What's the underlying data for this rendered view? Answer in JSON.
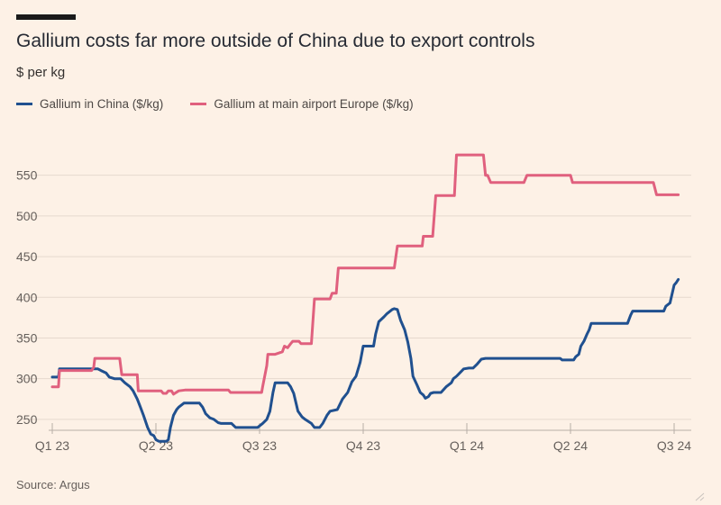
{
  "header": {
    "title": "Gallium costs far more outside of China due to export controls",
    "subtitle": "$ per kg"
  },
  "legend": [
    {
      "label": "Gallium in China ($/kg)",
      "color": "#20508f"
    },
    {
      "label": "Gallium at main airport Europe ($/kg)",
      "color": "#e0607e"
    }
  ],
  "footer": {
    "source": "Source: Argus"
  },
  "chart_data": {
    "type": "line",
    "ylabel": "$ per kg",
    "ylim": [
      220,
      580
    ],
    "yticks": [
      250,
      300,
      350,
      400,
      450,
      500,
      550
    ],
    "xlim": [
      0,
      6.19
    ],
    "xticks": [
      {
        "label": "Q1 23",
        "x": 0
      },
      {
        "label": "Q2 23",
        "x": 1
      },
      {
        "label": "Q3 23",
        "x": 2
      },
      {
        "label": "Q4 23",
        "x": 3
      },
      {
        "label": "Q1 24",
        "x": 4
      },
      {
        "label": "Q2 24",
        "x": 5
      },
      {
        "label": "Q3 24",
        "x": 6
      }
    ],
    "grid": true,
    "series": [
      {
        "name": "Gallium in China ($/kg)",
        "color": "#20508f",
        "points": [
          [
            0.0,
            302
          ],
          [
            0.06,
            302
          ],
          [
            0.07,
            312
          ],
          [
            0.3,
            312
          ],
          [
            0.44,
            312
          ],
          [
            0.47,
            310
          ],
          [
            0.52,
            307
          ],
          [
            0.55,
            302
          ],
          [
            0.6,
            300
          ],
          [
            0.66,
            300
          ],
          [
            0.7,
            295
          ],
          [
            0.75,
            290
          ],
          [
            0.78,
            285
          ],
          [
            0.82,
            275
          ],
          [
            0.85,
            265
          ],
          [
            0.88,
            255
          ],
          [
            0.92,
            240
          ],
          [
            0.95,
            232
          ],
          [
            0.98,
            230
          ],
          [
            1.0,
            225
          ],
          [
            1.03,
            223
          ],
          [
            1.1,
            223
          ],
          [
            1.12,
            225
          ],
          [
            1.14,
            240
          ],
          [
            1.17,
            255
          ],
          [
            1.2,
            262
          ],
          [
            1.22,
            265
          ],
          [
            1.27,
            270
          ],
          [
            1.42,
            270
          ],
          [
            1.45,
            265
          ],
          [
            1.48,
            257
          ],
          [
            1.52,
            252
          ],
          [
            1.56,
            250
          ],
          [
            1.6,
            246
          ],
          [
            1.63,
            245
          ],
          [
            1.67,
            245
          ],
          [
            1.7,
            245
          ],
          [
            1.73,
            245
          ],
          [
            1.77,
            240
          ],
          [
            1.8,
            240
          ],
          [
            1.95,
            240
          ],
          [
            1.98,
            240
          ],
          [
            2.03,
            245
          ],
          [
            2.07,
            250
          ],
          [
            2.1,
            260
          ],
          [
            2.13,
            283
          ],
          [
            2.15,
            295
          ],
          [
            2.27,
            295
          ],
          [
            2.3,
            290
          ],
          [
            2.33,
            282
          ],
          [
            2.37,
            260
          ],
          [
            2.41,
            253
          ],
          [
            2.44,
            250
          ],
          [
            2.5,
            245
          ],
          [
            2.53,
            240
          ],
          [
            2.58,
            240
          ],
          [
            2.61,
            245
          ],
          [
            2.65,
            255
          ],
          [
            2.68,
            260
          ],
          [
            2.75,
            262
          ],
          [
            2.8,
            275
          ],
          [
            2.85,
            283
          ],
          [
            2.89,
            296
          ],
          [
            2.93,
            303
          ],
          [
            2.97,
            320
          ],
          [
            3.0,
            340
          ],
          [
            3.1,
            340
          ],
          [
            3.12,
            355
          ],
          [
            3.15,
            370
          ],
          [
            3.2,
            376
          ],
          [
            3.23,
            380
          ],
          [
            3.28,
            385
          ],
          [
            3.3,
            386
          ],
          [
            3.33,
            385
          ],
          [
            3.36,
            372
          ],
          [
            3.4,
            360
          ],
          [
            3.43,
            345
          ],
          [
            3.46,
            325
          ],
          [
            3.48,
            303
          ],
          [
            3.52,
            292
          ],
          [
            3.55,
            283
          ],
          [
            3.58,
            280
          ],
          [
            3.6,
            276
          ],
          [
            3.63,
            278
          ],
          [
            3.65,
            282
          ],
          [
            3.68,
            283
          ],
          [
            3.75,
            283
          ],
          [
            3.8,
            290
          ],
          [
            3.85,
            295
          ],
          [
            3.87,
            300
          ],
          [
            3.9,
            303
          ],
          [
            3.93,
            307
          ],
          [
            3.97,
            312
          ],
          [
            4.02,
            313
          ],
          [
            4.06,
            313
          ],
          [
            4.1,
            318
          ],
          [
            4.14,
            324
          ],
          [
            4.18,
            325
          ],
          [
            4.9,
            325
          ],
          [
            4.92,
            323
          ],
          [
            5.03,
            323
          ],
          [
            5.05,
            327
          ],
          [
            5.08,
            330
          ],
          [
            5.1,
            340
          ],
          [
            5.13,
            346
          ],
          [
            5.16,
            355
          ],
          [
            5.18,
            360
          ],
          [
            5.2,
            368
          ],
          [
            5.55,
            368
          ],
          [
            5.58,
            378
          ],
          [
            5.6,
            383
          ],
          [
            5.9,
            383
          ],
          [
            5.92,
            389
          ],
          [
            5.96,
            393
          ],
          [
            6.0,
            415
          ],
          [
            6.02,
            418
          ],
          [
            6.04,
            422
          ]
        ]
      },
      {
        "name": "Gallium at main airport Europe ($/kg)",
        "color": "#e0607e",
        "points": [
          [
            0.0,
            290
          ],
          [
            0.06,
            290
          ],
          [
            0.07,
            310
          ],
          [
            0.38,
            310
          ],
          [
            0.4,
            314
          ],
          [
            0.41,
            325
          ],
          [
            0.65,
            325
          ],
          [
            0.67,
            305
          ],
          [
            0.8,
            305
          ],
          [
            0.82,
            305
          ],
          [
            0.83,
            285
          ],
          [
            1.02,
            285
          ],
          [
            1.05,
            285
          ],
          [
            1.07,
            282
          ],
          [
            1.1,
            282
          ],
          [
            1.12,
            285
          ],
          [
            1.15,
            285
          ],
          [
            1.17,
            281
          ],
          [
            1.22,
            285
          ],
          [
            1.28,
            286
          ],
          [
            1.7,
            286
          ],
          [
            1.72,
            283
          ],
          [
            1.8,
            283
          ],
          [
            2.02,
            283
          ],
          [
            2.03,
            290
          ],
          [
            2.07,
            316
          ],
          [
            2.08,
            330
          ],
          [
            2.15,
            330
          ],
          [
            2.22,
            333
          ],
          [
            2.24,
            340
          ],
          [
            2.27,
            338
          ],
          [
            2.3,
            343
          ],
          [
            2.32,
            346
          ],
          [
            2.38,
            346
          ],
          [
            2.4,
            343
          ],
          [
            2.5,
            343
          ],
          [
            2.53,
            398
          ],
          [
            2.68,
            398
          ],
          [
            2.7,
            405
          ],
          [
            2.74,
            405
          ],
          [
            2.76,
            436
          ],
          [
            3.3,
            436
          ],
          [
            3.33,
            463
          ],
          [
            3.57,
            463
          ],
          [
            3.58,
            475
          ],
          [
            3.67,
            475
          ],
          [
            3.7,
            525
          ],
          [
            3.88,
            525
          ],
          [
            3.9,
            575
          ],
          [
            4.16,
            575
          ],
          [
            4.18,
            550
          ],
          [
            4.2,
            550
          ],
          [
            4.23,
            541
          ],
          [
            4.55,
            541
          ],
          [
            4.58,
            550
          ],
          [
            5.0,
            550
          ],
          [
            5.02,
            541
          ],
          [
            5.8,
            541
          ],
          [
            5.83,
            526
          ],
          [
            6.04,
            526
          ]
        ]
      }
    ]
  }
}
